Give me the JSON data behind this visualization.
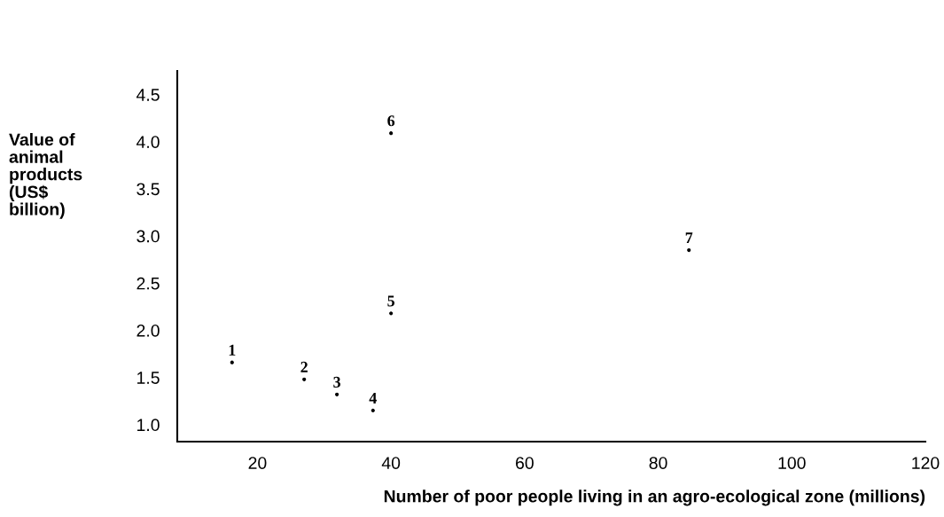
{
  "chart_data": {
    "type": "scatter",
    "xlabel": "Number of poor people living in an agro-ecological zone (millions)",
    "ylabel": "Value of\nanimal\nproducts\n(US$\nbillion)",
    "x": [
      16.2,
      27,
      31.9,
      37.3,
      40,
      40,
      84.6
    ],
    "series": [
      {
        "color": "#000000",
        "values": [
          1.66,
          1.48,
          1.32,
          1.15,
          2.18,
          4.09,
          2.85
        ]
      }
    ],
    "annotations": [
      {
        "text": "1",
        "x": 16.2,
        "y": 1.66
      },
      {
        "text": "2",
        "x": 27,
        "y": 1.48
      },
      {
        "text": "3",
        "x": 31.9,
        "y": 1.32
      },
      {
        "text": "4",
        "x": 37.3,
        "y": 1.15
      },
      {
        "text": "5",
        "x": 40,
        "y": 2.18
      },
      {
        "text": "6",
        "x": 40,
        "y": 4.09
      },
      {
        "text": "7",
        "x": 84.6,
        "y": 2.85
      }
    ],
    "marker": "circle",
    "xlim": [
      8,
      120
    ],
    "xticks": [
      20,
      40,
      60,
      80,
      100,
      120
    ],
    "ylim": [
      0.82,
      4.75
    ],
    "yticks": [
      {
        "value": 1.0,
        "label": "1.0"
      },
      {
        "value": 1.5,
        "label": "1.5"
      },
      {
        "value": 2.0,
        "label": "2.0"
      },
      {
        "value": 2.5,
        "label": "2.5"
      },
      {
        "value": 3.0,
        "label": "3.0"
      },
      {
        "value": 3.5,
        "label": "3.5"
      },
      {
        "value": 4.0,
        "label": "4.0"
      },
      {
        "value": 4.5,
        "label": "4.5"
      }
    ],
    "grid": false,
    "legend": false
  }
}
